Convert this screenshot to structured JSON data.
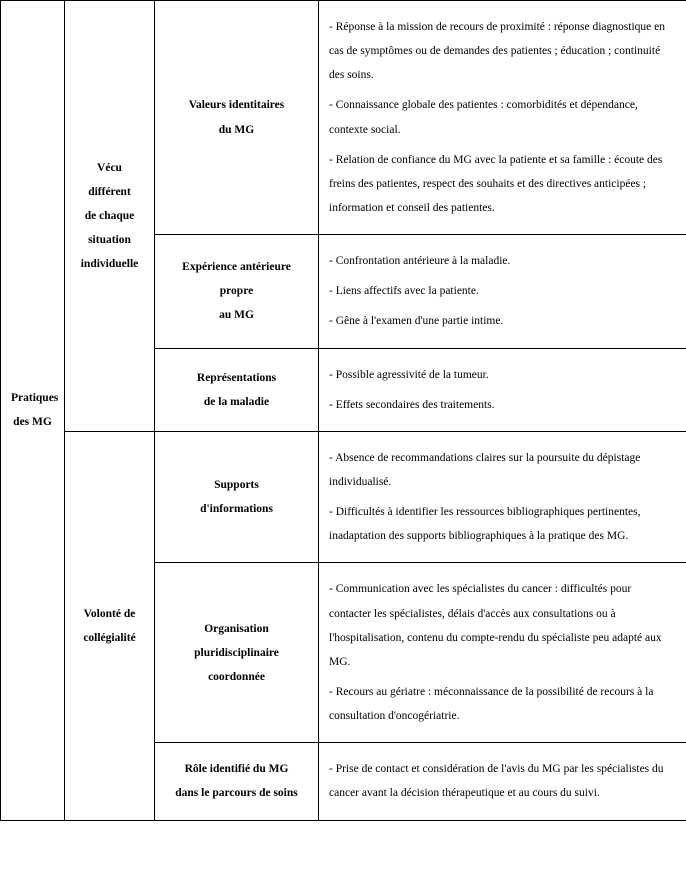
{
  "col1": {
    "line1": "Pratiques",
    "line2": "des MG"
  },
  "group1": {
    "title_line1": "Vécu",
    "title_line2": "différent",
    "title_line3": "de chaque",
    "title_line4": "situation",
    "title_line5": "individuelle",
    "rows": [
      {
        "h_line1": "Valeurs identitaires",
        "h_line2": "du MG",
        "c_p1": "- Réponse à la mission de recours de proximité : réponse diagnostique en cas de symptômes ou de demandes des patientes ; éducation ; continuité des soins.",
        "c_p2": "- Connaissance globale des patientes : comorbidités et dépendance, contexte social.",
        "c_p3": "- Relation de confiance du MG avec la patiente et sa famille : écoute des freins des patientes, respect des souhaits et des directives anticipées ; information et conseil des patientes."
      },
      {
        "h_line1": "Expérience antérieure",
        "h_line2": "propre",
        "h_line3": "au MG",
        "c_p1": "- Confrontation antérieure à la maladie.",
        "c_p2": "- Liens affectifs avec la patiente.",
        "c_p3": "- Gêne à l'examen d'une partie intime."
      },
      {
        "h_line1": "Représentations",
        "h_line2": "de la maladie",
        "c_p1": "- Possible agressivité de la tumeur.",
        "c_p2": "- Effets secondaires des traitements."
      }
    ]
  },
  "group2": {
    "title_line1": "Volonté de",
    "title_line2": "collégialité",
    "rows": [
      {
        "h_line1": "Supports",
        "h_line2": "d'informations",
        "c_p1": "- Absence de recommandations claires sur la poursuite du dépistage individualisé.",
        "c_p2": "- Difficultés à identifier les ressources bibliographiques pertinentes, inadaptation des supports bibliographiques à la pratique des MG."
      },
      {
        "h_line1": "Organisation",
        "h_line2": "pluridisciplinaire",
        "h_line3": "coordonnée",
        "c_p1": "- Communication avec les spécialistes du cancer : difficultés pour contacter les spécialistes, délais d'accès aux consultations ou à l'hospitalisation, contenu du compte-rendu du spécialiste peu adapté aux MG.",
        "c_p2": "- Recours au gériatre : méconnaissance de la possibilité de recours à la consultation d'oncogériatrie."
      },
      {
        "h_line1": "Rôle identifié du MG",
        "h_line2": "dans le parcours de soins",
        "c_p1": "- Prise de contact et considération de l'avis du MG par les spécialistes du cancer avant la décision thérapeutique et au cours du suivi."
      }
    ]
  }
}
